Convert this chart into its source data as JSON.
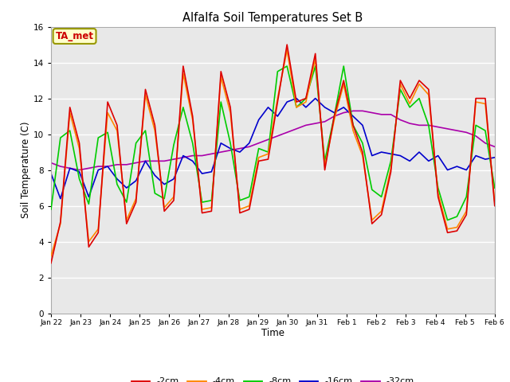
{
  "title": "Alfalfa Soil Temperatures Set B",
  "xlabel": "Time",
  "ylabel": "Soil Temperature (C)",
  "ylim": [
    0,
    16
  ],
  "yticks": [
    0,
    2,
    4,
    6,
    8,
    10,
    12,
    14,
    16
  ],
  "bg_color": "#e8e8e8",
  "annotation_text": "TA_met",
  "annotation_color": "#cc0000",
  "annotation_bg": "#ffffcc",
  "annotation_border": "#999900",
  "series_colors": {
    "-2cm": "#dd0000",
    "-4cm": "#ff8800",
    "-8cm": "#00cc00",
    "-16cm": "#0000cc",
    "-32cm": "#aa00aa"
  },
  "x_labels": [
    "Jan 22",
    "Jan 23",
    "Jan 24",
    "Jan 25",
    "Jan 26",
    "Jan 27",
    "Jan 28",
    "Jan 29",
    "Jan 30",
    "Jan 31",
    "Feb 1",
    "Feb 2",
    "Feb 3",
    "Feb 4",
    "Feb 5",
    "Feb 6"
  ],
  "n_days": 16,
  "d2cm": [
    2.8,
    5.1,
    11.5,
    9.5,
    3.7,
    4.5,
    11.8,
    10.5,
    5.0,
    6.2,
    12.5,
    10.5,
    5.7,
    6.3,
    13.8,
    11.0,
    5.6,
    5.7,
    13.5,
    11.5,
    5.6,
    5.8,
    8.5,
    8.6,
    11.8,
    15.0,
    11.8,
    12.0,
    14.5,
    8.0,
    11.0,
    13.0,
    10.5,
    9.0,
    5.0,
    5.5,
    7.9,
    13.0,
    12.0,
    13.0,
    12.5,
    6.5,
    4.5,
    4.6,
    5.5,
    12.0,
    12.0,
    6.0
  ],
  "d4cm": [
    3.2,
    5.0,
    11.2,
    9.2,
    4.0,
    4.7,
    11.2,
    10.2,
    5.2,
    6.4,
    12.2,
    10.2,
    5.9,
    6.5,
    13.4,
    10.8,
    5.8,
    5.9,
    13.2,
    11.2,
    5.8,
    6.0,
    8.7,
    8.9,
    12.0,
    14.7,
    11.5,
    11.8,
    14.2,
    8.2,
    10.8,
    12.8,
    10.2,
    8.8,
    5.2,
    5.7,
    8.1,
    12.8,
    11.7,
    12.8,
    12.2,
    6.7,
    4.7,
    4.8,
    5.7,
    11.8,
    11.7,
    6.2
  ],
  "d8cm": [
    5.8,
    9.8,
    10.2,
    7.5,
    6.1,
    9.8,
    10.1,
    7.2,
    6.2,
    9.5,
    10.2,
    6.7,
    6.4,
    9.4,
    11.5,
    9.5,
    6.2,
    6.3,
    11.8,
    9.5,
    6.3,
    6.5,
    9.2,
    9.0,
    13.5,
    13.8,
    11.5,
    12.0,
    13.8,
    8.5,
    11.0,
    13.8,
    10.5,
    9.5,
    6.9,
    6.5,
    8.5,
    12.5,
    11.5,
    12.0,
    10.5,
    7.0,
    5.2,
    5.4,
    6.5,
    10.5,
    10.2,
    7.0
  ],
  "d16cm": [
    7.8,
    6.4,
    8.1,
    7.9,
    6.5,
    8.0,
    8.2,
    7.5,
    7.0,
    7.4,
    8.5,
    7.7,
    7.2,
    7.5,
    8.8,
    8.5,
    7.8,
    7.9,
    9.5,
    9.2,
    9.0,
    9.5,
    10.8,
    11.5,
    11.0,
    11.8,
    12.0,
    11.5,
    12.0,
    11.5,
    11.2,
    11.5,
    11.0,
    10.5,
    8.8,
    9.0,
    8.9,
    8.8,
    8.5,
    9.0,
    8.5,
    8.8,
    8.0,
    8.2,
    8.0,
    8.8,
    8.6,
    8.7
  ],
  "d32cm": [
    8.4,
    8.2,
    8.1,
    8.0,
    8.1,
    8.2,
    8.2,
    8.3,
    8.3,
    8.4,
    8.5,
    8.5,
    8.5,
    8.6,
    8.7,
    8.8,
    8.8,
    8.9,
    9.0,
    9.1,
    9.2,
    9.3,
    9.5,
    9.7,
    9.9,
    10.1,
    10.3,
    10.5,
    10.6,
    10.7,
    11.0,
    11.2,
    11.3,
    11.3,
    11.2,
    11.1,
    11.1,
    10.8,
    10.6,
    10.5,
    10.5,
    10.4,
    10.3,
    10.2,
    10.1,
    9.9,
    9.5,
    9.3
  ]
}
